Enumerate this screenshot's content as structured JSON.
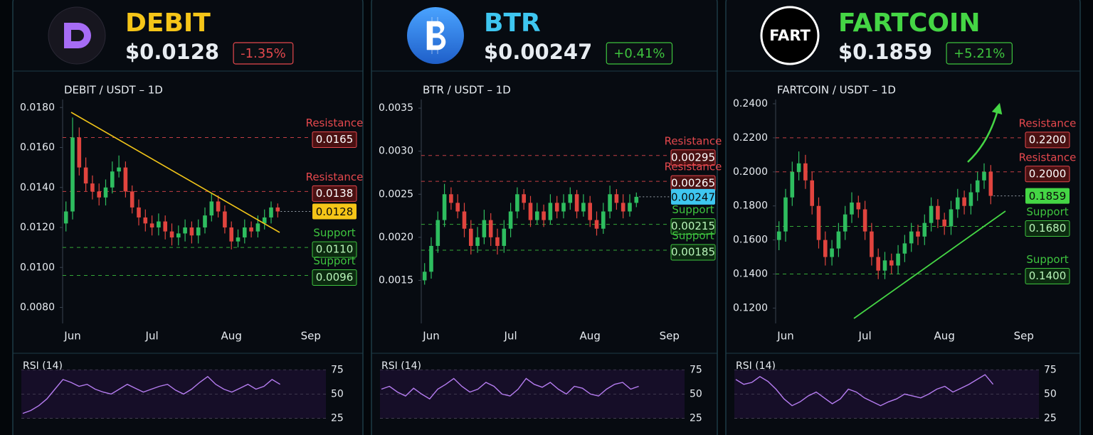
{
  "chart_data": [
    {
      "type": "candlestick",
      "name": "DEBIT",
      "name_color": "#f5c518",
      "price": "$0.0128",
      "change": "-1.35%",
      "change_color": "#e5484d",
      "title": "DEBIT / USDT – 1D",
      "categories": [
        null,
        "Jun",
        null,
        null,
        null,
        null,
        null,
        null,
        null,
        null,
        null,
        null,
        null,
        "Jul",
        null,
        null,
        null,
        null,
        null,
        null,
        null,
        null,
        null,
        null,
        null,
        "Aug",
        null,
        null,
        null,
        null,
        null,
        null,
        null,
        null,
        null,
        null,
        null,
        "Sep",
        null,
        null
      ],
      "open": [
        0.0122,
        0.0128,
        0.0165,
        0.015,
        0.0142,
        0.0138,
        0.0135,
        0.014,
        0.0148,
        0.015,
        0.0138,
        0.013,
        0.0125,
        0.0122,
        0.012,
        0.0123,
        0.0118,
        0.0115,
        0.0117,
        0.012,
        0.0116,
        0.012,
        0.0126,
        0.0133,
        0.0128,
        0.012,
        0.0113,
        0.0115,
        0.012,
        0.0118,
        0.0122,
        0.0125,
        0.013,
        null,
        null,
        null,
        null,
        null,
        null,
        null
      ],
      "high": [
        0.0133,
        0.0175,
        0.017,
        0.0155,
        0.0146,
        0.0142,
        0.0144,
        0.0153,
        0.0156,
        0.0153,
        0.0141,
        0.0134,
        0.0129,
        0.0126,
        0.0127,
        0.0126,
        0.0122,
        0.0121,
        0.0124,
        0.0123,
        0.0124,
        0.013,
        0.0137,
        0.0136,
        0.0131,
        0.0123,
        0.0119,
        0.0124,
        0.0123,
        0.0126,
        0.0129,
        0.0133,
        0.0132,
        null,
        null,
        null,
        null,
        null,
        null,
        null
      ],
      "low": [
        0.0118,
        0.0124,
        0.0146,
        0.0138,
        0.0134,
        0.0131,
        0.0131,
        0.0137,
        0.0145,
        0.0135,
        0.0127,
        0.0121,
        0.0118,
        0.0116,
        0.0116,
        0.0114,
        0.0111,
        0.0111,
        0.0113,
        0.0112,
        0.0112,
        0.0117,
        0.0123,
        0.0125,
        0.0117,
        0.0109,
        0.011,
        0.0112,
        0.0115,
        0.0115,
        0.0119,
        0.0122,
        0.0125,
        null,
        null,
        null,
        null,
        null,
        null,
        null
      ],
      "close": [
        0.0128,
        0.0165,
        0.015,
        0.0142,
        0.0138,
        0.0135,
        0.014,
        0.0148,
        0.015,
        0.0138,
        0.013,
        0.0125,
        0.0122,
        0.012,
        0.0123,
        0.0118,
        0.0115,
        0.0117,
        0.012,
        0.0116,
        0.012,
        0.0126,
        0.0133,
        0.0128,
        0.012,
        0.0113,
        0.0115,
        0.012,
        0.0118,
        0.0122,
        0.0125,
        0.013,
        0.0128,
        null,
        null,
        null,
        null,
        null,
        null,
        null
      ],
      "up_color": "#2ebd5f",
      "down_color": "#e0443e",
      "ylim": [
        0.0072,
        0.0184
      ],
      "yticks": [
        {
          "value": 0.018,
          "label": "0.0180"
        },
        {
          "value": 0.016,
          "label": "0.0160"
        },
        {
          "value": 0.014,
          "label": "0.0140"
        },
        {
          "value": 0.012,
          "label": "0.0120"
        },
        {
          "value": 0.01,
          "label": "0.0100"
        },
        {
          "value": 0.008,
          "label": "0.0080"
        }
      ],
      "levels": [
        {
          "name": "Resistance",
          "value": 0.0165,
          "color": "#e5484d"
        },
        {
          "name": "Resistance",
          "value": 0.0138,
          "color": "#e5484d"
        },
        {
          "name": "Support",
          "value": 0.011,
          "value_label": "0.0110",
          "color": "#3ec43e"
        },
        {
          "name": "Support",
          "value": 0.0096,
          "color": "#3ec43e"
        }
      ],
      "last": 0.0128,
      "rsi": {
        "title": "RSI (14)",
        "color": "#b57cf0",
        "ylim": [
          18,
          84
        ],
        "yticks": [
          75,
          50,
          25
        ],
        "values": [
          30,
          33,
          38,
          45,
          55,
          65,
          62,
          58,
          60,
          55,
          52,
          50,
          55,
          60,
          56,
          52,
          55,
          58,
          60,
          54,
          50,
          55,
          62,
          68,
          60,
          55,
          52,
          56,
          60,
          55,
          58,
          65,
          60,
          null,
          null,
          null,
          null,
          null,
          null,
          null
        ]
      }
    },
    {
      "type": "candlestick",
      "name": "BTR",
      "name_color": "#3ec6f0",
      "price": "$0.00247",
      "change": "+0.41%",
      "change_color": "#3ec43e",
      "title": "BTR / USDT – 1D",
      "categories": [
        null,
        "Jun",
        null,
        null,
        null,
        null,
        null,
        null,
        null,
        null,
        null,
        null,
        null,
        "Jul",
        null,
        null,
        null,
        null,
        null,
        null,
        null,
        null,
        null,
        null,
        null,
        "Aug",
        null,
        null,
        null,
        null,
        null,
        null,
        null,
        null,
        null,
        null,
        null,
        "Sep",
        null,
        null
      ],
      "open": [
        0.0015,
        0.0016,
        0.0019,
        0.0022,
        0.0025,
        0.0024,
        0.0023,
        0.0021,
        0.0019,
        0.002,
        0.0022,
        0.002,
        0.0019,
        0.0021,
        0.0023,
        0.0025,
        0.0024,
        0.0022,
        0.0023,
        0.0022,
        0.0024,
        0.0023,
        0.0024,
        0.0025,
        0.0023,
        0.0024,
        0.0022,
        0.0021,
        0.0023,
        0.0025,
        0.0024,
        0.0023,
        0.0024,
        null,
        null,
        null,
        null,
        null,
        null,
        null
      ],
      "high": [
        0.0017,
        0.002,
        0.0023,
        0.00262,
        0.00258,
        0.0025,
        0.0024,
        0.0022,
        0.00212,
        0.00232,
        0.00228,
        0.0021,
        0.0022,
        0.0024,
        0.00258,
        0.00256,
        0.00248,
        0.0024,
        0.00238,
        0.0025,
        0.00248,
        0.0025,
        0.00258,
        0.00255,
        0.0025,
        0.00248,
        0.0023,
        0.0024,
        0.0026,
        0.00256,
        0.0025,
        0.0025,
        0.00252,
        null,
        null,
        null,
        null,
        null,
        null,
        null
      ],
      "low": [
        0.00145,
        0.00152,
        0.00182,
        0.00212,
        0.00232,
        0.00222,
        0.002,
        0.0018,
        0.00182,
        0.00192,
        0.0019,
        0.0018,
        0.00182,
        0.002,
        0.00222,
        0.00232,
        0.00212,
        0.00215,
        0.00212,
        0.00215,
        0.00222,
        0.00222,
        0.00232,
        0.00222,
        0.00224,
        0.00212,
        0.00202,
        0.00204,
        0.00222,
        0.00232,
        0.00222,
        0.00224,
        0.00235,
        null,
        null,
        null,
        null,
        null,
        null,
        null
      ],
      "close": [
        0.0016,
        0.0019,
        0.0022,
        0.0025,
        0.0024,
        0.0023,
        0.0021,
        0.0019,
        0.002,
        0.0022,
        0.002,
        0.0019,
        0.0021,
        0.0023,
        0.0025,
        0.0024,
        0.0022,
        0.0023,
        0.0022,
        0.0024,
        0.0023,
        0.0024,
        0.0025,
        0.0023,
        0.0024,
        0.0022,
        0.0021,
        0.0023,
        0.0025,
        0.0024,
        0.0023,
        0.0024,
        0.00247,
        null,
        null,
        null,
        null,
        null,
        null,
        null
      ],
      "up_color": "#2ebd5f",
      "down_color": "#e0443e",
      "ylim": [
        0.001,
        0.0036
      ],
      "yticks": [
        0.0035,
        {
          "value": 0.003,
          "label": "0.0030"
        },
        0.0025,
        {
          "value": 0.002,
          "label": "0.0020"
        },
        0.0015
      ],
      "levels": [
        {
          "name": "Resistance",
          "value": 0.00295,
          "color": "#e5484d"
        },
        {
          "name": "Resistance",
          "value": 0.00265,
          "color": "#e5484d"
        },
        {
          "name": "Support",
          "value": 0.00215,
          "color": "#3ec43e"
        },
        {
          "name": "Support",
          "value": 0.00185,
          "color": "#3ec43e"
        }
      ],
      "last": 0.00247,
      "rsi": {
        "title": "RSI (14)",
        "color": "#b57cf0",
        "ylim": [
          18,
          84
        ],
        "yticks": [
          75,
          50,
          25
        ],
        "values": [
          55,
          58,
          52,
          48,
          56,
          50,
          45,
          55,
          60,
          66,
          58,
          52,
          55,
          62,
          58,
          50,
          48,
          55,
          66,
          60,
          57,
          62,
          55,
          50,
          58,
          56,
          50,
          48,
          55,
          60,
          62,
          55,
          58,
          null,
          null,
          null,
          null,
          null,
          null,
          null
        ]
      }
    },
    {
      "type": "candlestick",
      "name": "FARTCOIN",
      "name_color": "#45d645",
      "logo_text": "FART",
      "price": "$0.1859",
      "change": "+5.21%",
      "change_color": "#3ec43e",
      "title": "FARTCOIN / USDT – 1D",
      "categories": [
        null,
        "Jun",
        null,
        null,
        null,
        null,
        null,
        null,
        null,
        null,
        null,
        null,
        null,
        "Jul",
        null,
        null,
        null,
        null,
        null,
        null,
        null,
        null,
        null,
        null,
        null,
        "Aug",
        null,
        null,
        null,
        null,
        null,
        null,
        null,
        null,
        null,
        null,
        null,
        "Sep",
        null,
        null
      ],
      "open": [
        0.16,
        0.165,
        0.185,
        0.2,
        0.205,
        0.195,
        0.18,
        0.16,
        0.15,
        0.155,
        0.165,
        0.175,
        0.182,
        0.178,
        0.165,
        0.15,
        0.142,
        0.148,
        0.145,
        0.152,
        0.158,
        0.165,
        0.162,
        0.17,
        0.18,
        0.172,
        0.168,
        0.178,
        0.185,
        0.18,
        0.188,
        0.195,
        0.2,
        null,
        null,
        null,
        null,
        null,
        null,
        null
      ],
      "high": [
        0.171,
        0.19,
        0.206,
        0.212,
        0.21,
        0.2,
        0.185,
        0.165,
        0.16,
        0.17,
        0.18,
        0.188,
        0.186,
        0.183,
        0.17,
        0.155,
        0.153,
        0.152,
        0.157,
        0.163,
        0.17,
        0.169,
        0.175,
        0.185,
        0.184,
        0.176,
        0.183,
        0.19,
        0.189,
        0.193,
        0.2,
        0.205,
        0.204,
        null,
        null,
        null,
        null,
        null,
        null,
        null
      ],
      "low": [
        0.154,
        0.159,
        0.18,
        0.195,
        0.19,
        0.175,
        0.155,
        0.145,
        0.145,
        0.15,
        0.16,
        0.17,
        0.173,
        0.16,
        0.145,
        0.137,
        0.137,
        0.14,
        0.14,
        0.147,
        0.153,
        0.157,
        0.157,
        0.165,
        0.167,
        0.163,
        0.163,
        0.173,
        0.175,
        0.175,
        0.183,
        0.19,
        0.181,
        null,
        null,
        null,
        null,
        null,
        null,
        null
      ],
      "close": [
        0.165,
        0.185,
        0.2,
        0.205,
        0.195,
        0.18,
        0.16,
        0.15,
        0.155,
        0.165,
        0.175,
        0.182,
        0.178,
        0.165,
        0.15,
        0.142,
        0.148,
        0.145,
        0.152,
        0.158,
        0.165,
        0.162,
        0.17,
        0.18,
        0.172,
        0.168,
        0.178,
        0.185,
        0.18,
        0.188,
        0.195,
        0.2,
        0.1859,
        null,
        null,
        null,
        null,
        null,
        null,
        null
      ],
      "up_color": "#2ebd5f",
      "down_color": "#e0443e",
      "ylim": [
        0.111,
        0.2425
      ],
      "yticks": [
        {
          "value": 0.24,
          "label": "0.2400"
        },
        {
          "value": 0.22,
          "label": "0.2200"
        },
        {
          "value": 0.2,
          "label": "0.2000"
        },
        {
          "value": 0.18,
          "label": "0.1800"
        },
        {
          "value": 0.16,
          "label": "0.1600"
        },
        {
          "value": 0.14,
          "label": "0.1400"
        },
        {
          "value": 0.12,
          "label": "0.1200"
        }
      ],
      "levels": [
        {
          "name": "Resistance",
          "value": 0.22,
          "value_label": "0.2200",
          "color": "#e5484d"
        },
        {
          "name": "Resistance",
          "value": 0.2,
          "value_label": "0.2000",
          "color": "#e5484d"
        },
        {
          "name": "Support",
          "value": 0.168,
          "value_label": "0.1680",
          "color": "#3ec43e"
        },
        {
          "name": "Support",
          "value": 0.14,
          "value_label": "0.1400",
          "color": "#3ec43e"
        }
      ],
      "last": 0.1859,
      "rsi": {
        "title": "RSI (14)",
        "color": "#b57cf0",
        "ylim": [
          18,
          84
        ],
        "yticks": [
          75,
          50,
          25
        ],
        "values": [
          65,
          60,
          62,
          68,
          63,
          55,
          45,
          38,
          42,
          48,
          52,
          46,
          40,
          45,
          55,
          52,
          46,
          42,
          38,
          42,
          45,
          50,
          48,
          46,
          50,
          55,
          58,
          52,
          56,
          60,
          65,
          70,
          60,
          null,
          null,
          null,
          null,
          null,
          null,
          null
        ]
      }
    }
  ]
}
